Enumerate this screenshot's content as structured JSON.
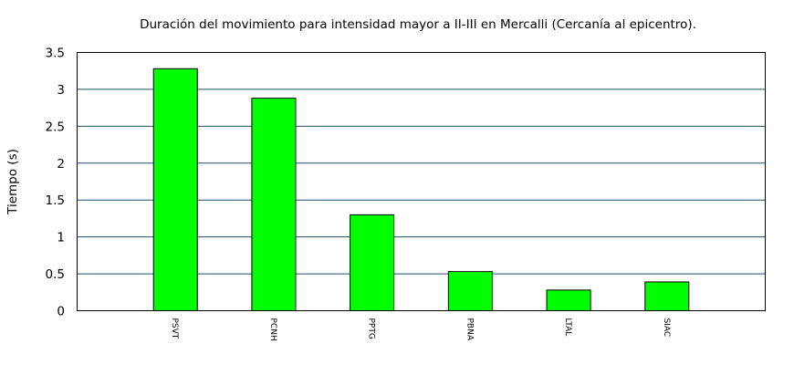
{
  "chart_data": {
    "type": "bar",
    "title": "Duración del movimiento para intensidad mayor a II-III en Mercalli (Cercanía al epicentro).",
    "xlabel": "",
    "ylabel": "Tiempo (s)",
    "categories": [
      "PSVT",
      "PCNH",
      "PPTG",
      "PBNA",
      "LTAL",
      "SIAC"
    ],
    "values": [
      3.28,
      2.88,
      1.3,
      0.53,
      0.28,
      0.39
    ],
    "ylim": [
      0,
      3.5
    ],
    "yticks": [
      "0",
      "0.5",
      "1",
      "1.5",
      "2",
      "2.5",
      "3",
      "3.5"
    ],
    "grid": true,
    "legend": "none",
    "colors": {
      "bar": "#00ff00",
      "grid": "#1f4d6e"
    }
  }
}
